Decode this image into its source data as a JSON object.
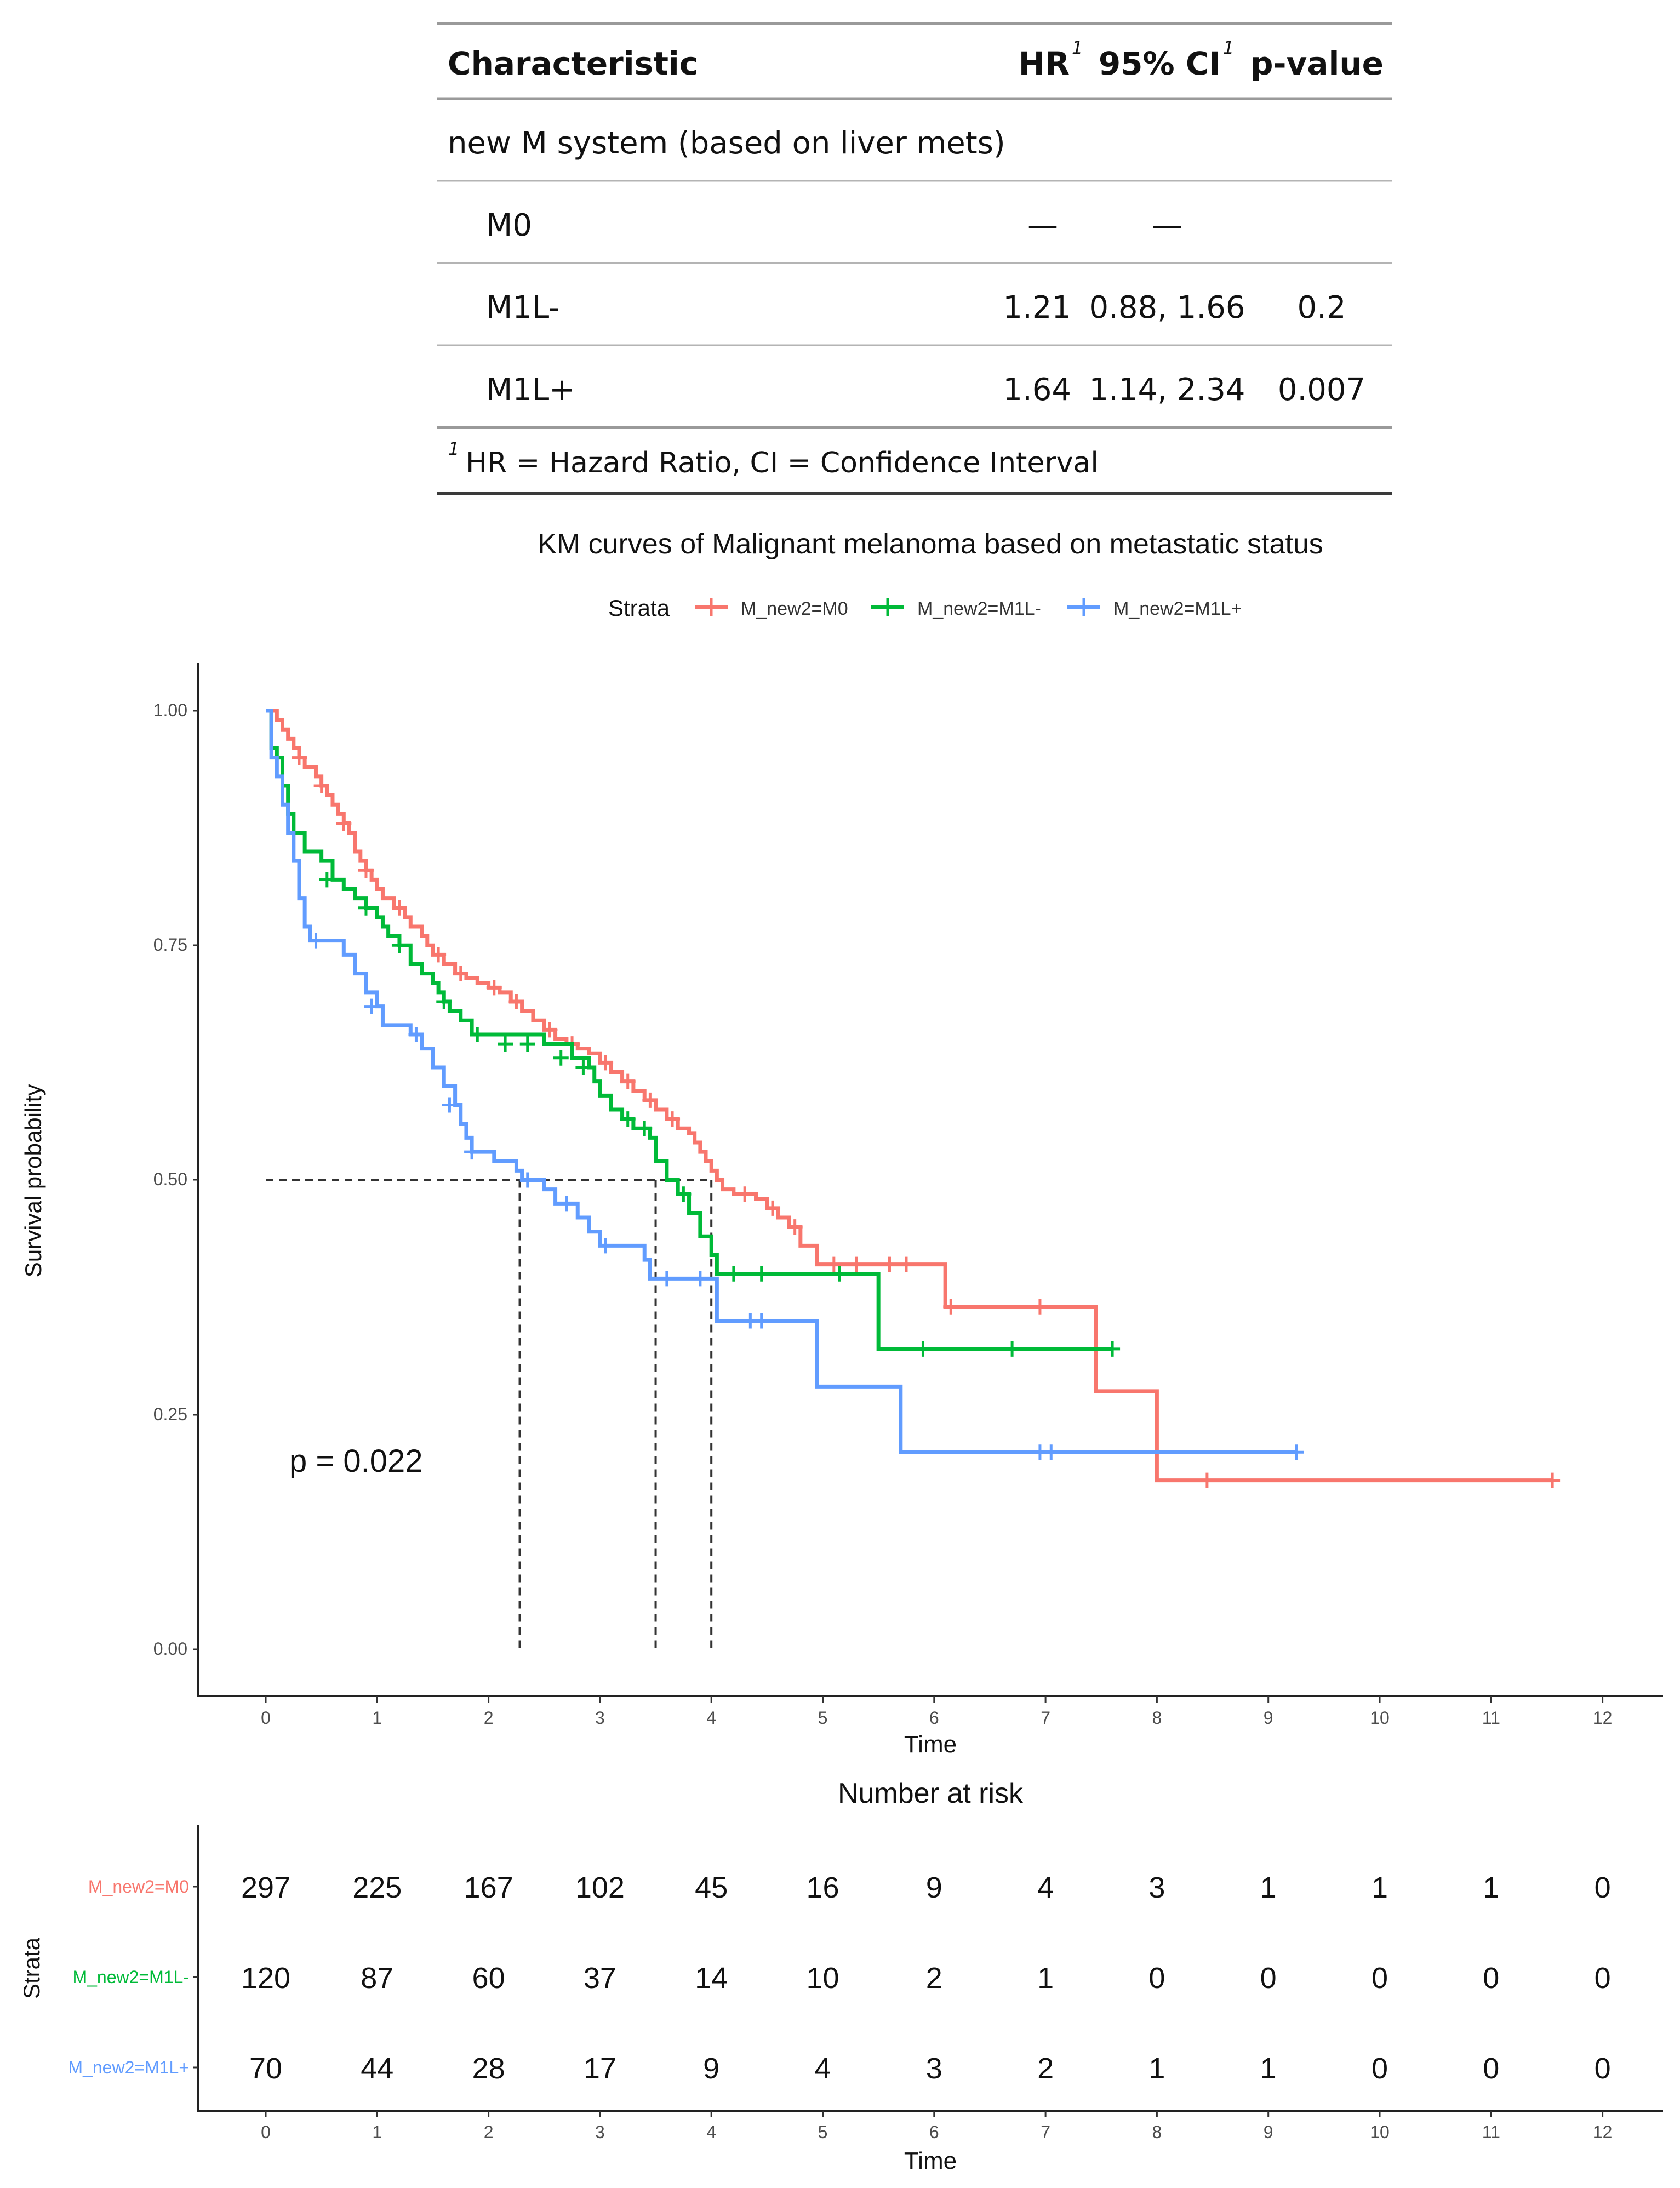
{
  "regression_table": {
    "columns": [
      "Characteristic",
      "HR",
      "95% CI",
      "p-value"
    ],
    "ci_footnote_mark": "1",
    "hr_footnote_mark": "1",
    "group_label": "new M system (based on liver mets)",
    "rows": [
      {
        "label": "M0",
        "hr": "—",
        "ci": "—",
        "p": ""
      },
      {
        "label": "M1L-",
        "hr": "1.21",
        "ci": "0.88, 1.66",
        "p": "0.2"
      },
      {
        "label": "M1L+",
        "hr": "1.64",
        "ci": "1.14, 2.34",
        "p": "0.007"
      }
    ],
    "footnote_mark": "1",
    "footnote": "HR = Hazard Ratio, CI = Confidence Interval"
  },
  "chart_data": [
    {
      "type": "line",
      "subtype": "kaplan-meier",
      "title": "KM curves of Malignant melanoma based on metastatic status",
      "legend_title": "Strata",
      "legend_position": "top",
      "xlabel": "Time",
      "ylabel": "Survival probability",
      "xlim": [
        -0.6,
        12.6
      ],
      "ylim": [
        -0.04,
        1.05
      ],
      "x_ticks": [
        "0",
        "1",
        "2",
        "3",
        "4",
        "5",
        "6",
        "7",
        "8",
        "9",
        "10",
        "11",
        "12"
      ],
      "y_ticks": [
        "0.00",
        "0.25",
        "0.50",
        "0.75",
        "1.00"
      ],
      "pvalue_text": "p = 0.022",
      "median_line": {
        "y": 0.5,
        "medians": [
          4.0,
          3.5,
          2.28
        ]
      },
      "series": [
        {
          "name": "M_new2=M0",
          "color": "#F8766D",
          "steps": [
            [
              0,
              1.0
            ],
            [
              0.1,
              0.99
            ],
            [
              0.15,
              0.98
            ],
            [
              0.2,
              0.97
            ],
            [
              0.25,
              0.96
            ],
            [
              0.3,
              0.95
            ],
            [
              0.35,
              0.94
            ],
            [
              0.45,
              0.93
            ],
            [
              0.5,
              0.92
            ],
            [
              0.55,
              0.91
            ],
            [
              0.6,
              0.9
            ],
            [
              0.65,
              0.89
            ],
            [
              0.7,
              0.88
            ],
            [
              0.75,
              0.87
            ],
            [
              0.8,
              0.85
            ],
            [
              0.85,
              0.84
            ],
            [
              0.9,
              0.83
            ],
            [
              0.95,
              0.82
            ],
            [
              1.0,
              0.81
            ],
            [
              1.05,
              0.8
            ],
            [
              1.15,
              0.79
            ],
            [
              1.25,
              0.78
            ],
            [
              1.3,
              0.77
            ],
            [
              1.4,
              0.76
            ],
            [
              1.45,
              0.75
            ],
            [
              1.5,
              0.74
            ],
            [
              1.6,
              0.73
            ],
            [
              1.7,
              0.72
            ],
            [
              1.8,
              0.715
            ],
            [
              1.9,
              0.71
            ],
            [
              2.0,
              0.705
            ],
            [
              2.1,
              0.7
            ],
            [
              2.2,
              0.69
            ],
            [
              2.3,
              0.68
            ],
            [
              2.4,
              0.67
            ],
            [
              2.5,
              0.66
            ],
            [
              2.6,
              0.65
            ],
            [
              2.7,
              0.645
            ],
            [
              2.8,
              0.64
            ],
            [
              2.9,
              0.635
            ],
            [
              3.0,
              0.625
            ],
            [
              3.1,
              0.615
            ],
            [
              3.2,
              0.605
            ],
            [
              3.3,
              0.595
            ],
            [
              3.4,
              0.585
            ],
            [
              3.5,
              0.575
            ],
            [
              3.6,
              0.565
            ],
            [
              3.7,
              0.555
            ],
            [
              3.8,
              0.55
            ],
            [
              3.85,
              0.54
            ],
            [
              3.9,
              0.53
            ],
            [
              3.95,
              0.52
            ],
            [
              4.0,
              0.51
            ],
            [
              4.05,
              0.5
            ],
            [
              4.1,
              0.49
            ],
            [
              4.2,
              0.485
            ],
            [
              4.4,
              0.48
            ],
            [
              4.5,
              0.47
            ],
            [
              4.6,
              0.46
            ],
            [
              4.7,
              0.45
            ],
            [
              4.8,
              0.43
            ],
            [
              4.95,
              0.41
            ],
            [
              6.1,
              0.365
            ],
            [
              7.45,
              0.275
            ],
            [
              8.0,
              0.18
            ]
          ],
          "end": 11.55,
          "censor": [
            [
              0.3,
              0.95
            ],
            [
              0.5,
              0.92
            ],
            [
              0.7,
              0.88
            ],
            [
              0.9,
              0.83
            ],
            [
              1.2,
              0.79
            ],
            [
              1.55,
              0.74
            ],
            [
              1.75,
              0.72
            ],
            [
              2.05,
              0.705
            ],
            [
              2.25,
              0.69
            ],
            [
              2.55,
              0.66
            ],
            [
              2.75,
              0.645
            ],
            [
              3.05,
              0.625
            ],
            [
              3.25,
              0.605
            ],
            [
              3.45,
              0.585
            ],
            [
              3.65,
              0.565
            ],
            [
              4.3,
              0.485
            ],
            [
              4.55,
              0.47
            ],
            [
              4.75,
              0.45
            ],
            [
              5.1,
              0.41
            ],
            [
              5.3,
              0.41
            ],
            [
              5.6,
              0.41
            ],
            [
              5.75,
              0.41
            ],
            [
              6.15,
              0.365
            ],
            [
              6.95,
              0.365
            ],
            [
              8.45,
              0.18
            ],
            [
              11.55,
              0.18
            ]
          ]
        },
        {
          "name": "M_new2=M1L-",
          "color": "#00BA38",
          "steps": [
            [
              0,
              1.0
            ],
            [
              0.05,
              0.96
            ],
            [
              0.1,
              0.95
            ],
            [
              0.15,
              0.92
            ],
            [
              0.2,
              0.89
            ],
            [
              0.25,
              0.87
            ],
            [
              0.35,
              0.85
            ],
            [
              0.5,
              0.84
            ],
            [
              0.6,
              0.82
            ],
            [
              0.7,
              0.81
            ],
            [
              0.8,
              0.8
            ],
            [
              0.9,
              0.79
            ],
            [
              1.0,
              0.78
            ],
            [
              1.05,
              0.77
            ],
            [
              1.1,
              0.76
            ],
            [
              1.2,
              0.75
            ],
            [
              1.3,
              0.73
            ],
            [
              1.4,
              0.72
            ],
            [
              1.5,
              0.71
            ],
            [
              1.55,
              0.7
            ],
            [
              1.6,
              0.69
            ],
            [
              1.65,
              0.68
            ],
            [
              1.75,
              0.67
            ],
            [
              1.85,
              0.655
            ],
            [
              2.5,
              0.645
            ],
            [
              2.75,
              0.63
            ],
            [
              2.9,
              0.62
            ],
            [
              2.95,
              0.605
            ],
            [
              3.0,
              0.59
            ],
            [
              3.1,
              0.575
            ],
            [
              3.2,
              0.565
            ],
            [
              3.3,
              0.555
            ],
            [
              3.45,
              0.545
            ],
            [
              3.5,
              0.52
            ],
            [
              3.6,
              0.5
            ],
            [
              3.7,
              0.485
            ],
            [
              3.8,
              0.465
            ],
            [
              3.9,
              0.44
            ],
            [
              4.0,
              0.42
            ],
            [
              4.05,
              0.4
            ],
            [
              5.5,
              0.32
            ]
          ],
          "end": 7.6,
          "censor": [
            [
              0.55,
              0.82
            ],
            [
              0.9,
              0.79
            ],
            [
              1.2,
              0.75
            ],
            [
              1.6,
              0.69
            ],
            [
              1.9,
              0.655
            ],
            [
              2.15,
              0.645
            ],
            [
              2.35,
              0.645
            ],
            [
              2.65,
              0.63
            ],
            [
              2.85,
              0.62
            ],
            [
              3.25,
              0.565
            ],
            [
              3.4,
              0.555
            ],
            [
              3.75,
              0.485
            ],
            [
              4.2,
              0.4
            ],
            [
              4.45,
              0.4
            ],
            [
              5.15,
              0.4
            ],
            [
              5.9,
              0.32
            ],
            [
              6.7,
              0.32
            ],
            [
              7.6,
              0.32
            ]
          ]
        },
        {
          "name": "M_new2=M1L+",
          "color": "#619CFF",
          "steps": [
            [
              0,
              1.0
            ],
            [
              0.05,
              0.95
            ],
            [
              0.1,
              0.93
            ],
            [
              0.15,
              0.9
            ],
            [
              0.2,
              0.87
            ],
            [
              0.25,
              0.84
            ],
            [
              0.3,
              0.8
            ],
            [
              0.35,
              0.77
            ],
            [
              0.4,
              0.755
            ],
            [
              0.7,
              0.74
            ],
            [
              0.8,
              0.72
            ],
            [
              0.9,
              0.7
            ],
            [
              1.0,
              0.685
            ],
            [
              1.05,
              0.665
            ],
            [
              1.3,
              0.655
            ],
            [
              1.4,
              0.64
            ],
            [
              1.5,
              0.62
            ],
            [
              1.6,
              0.6
            ],
            [
              1.7,
              0.58
            ],
            [
              1.75,
              0.56
            ],
            [
              1.8,
              0.545
            ],
            [
              1.85,
              0.53
            ],
            [
              2.05,
              0.52
            ],
            [
              2.25,
              0.51
            ],
            [
              2.3,
              0.5
            ],
            [
              2.5,
              0.49
            ],
            [
              2.6,
              0.475
            ],
            [
              2.8,
              0.46
            ],
            [
              2.9,
              0.445
            ],
            [
              3.0,
              0.43
            ],
            [
              3.4,
              0.415
            ],
            [
              3.45,
              0.395
            ],
            [
              4.05,
              0.35
            ],
            [
              4.95,
              0.28
            ],
            [
              5.7,
              0.21
            ]
          ],
          "end": 9.25,
          "censor": [
            [
              0.45,
              0.755
            ],
            [
              0.95,
              0.685
            ],
            [
              1.35,
              0.655
            ],
            [
              1.65,
              0.58
            ],
            [
              1.85,
              0.53
            ],
            [
              2.35,
              0.5
            ],
            [
              2.7,
              0.475
            ],
            [
              3.05,
              0.43
            ],
            [
              3.6,
              0.395
            ],
            [
              3.9,
              0.395
            ],
            [
              4.35,
              0.35
            ],
            [
              4.45,
              0.35
            ],
            [
              6.95,
              0.21
            ],
            [
              7.05,
              0.21
            ],
            [
              9.25,
              0.21
            ]
          ]
        }
      ]
    },
    {
      "type": "table",
      "title": "Number at risk",
      "xlabel": "Time",
      "ylabel": "Strata",
      "x_ticks": [
        "0",
        "1",
        "2",
        "3",
        "4",
        "5",
        "6",
        "7",
        "8",
        "9",
        "10",
        "11",
        "12"
      ],
      "rows": [
        {
          "name": "M_new2=M0",
          "color": "#F8766D",
          "values": [
            "297",
            "225",
            "167",
            "102",
            "45",
            "16",
            "9",
            "4",
            "3",
            "1",
            "1",
            "1",
            "0"
          ]
        },
        {
          "name": "M_new2=M1L-",
          "color": "#00BA38",
          "values": [
            "120",
            "87",
            "60",
            "37",
            "14",
            "10",
            "2",
            "1",
            "0",
            "0",
            "0",
            "0",
            "0"
          ]
        },
        {
          "name": "M_new2=M1L+",
          "color": "#619CFF",
          "values": [
            "70",
            "44",
            "28",
            "17",
            "9",
            "4",
            "3",
            "2",
            "1",
            "1",
            "0",
            "0",
            "0"
          ]
        }
      ]
    }
  ]
}
